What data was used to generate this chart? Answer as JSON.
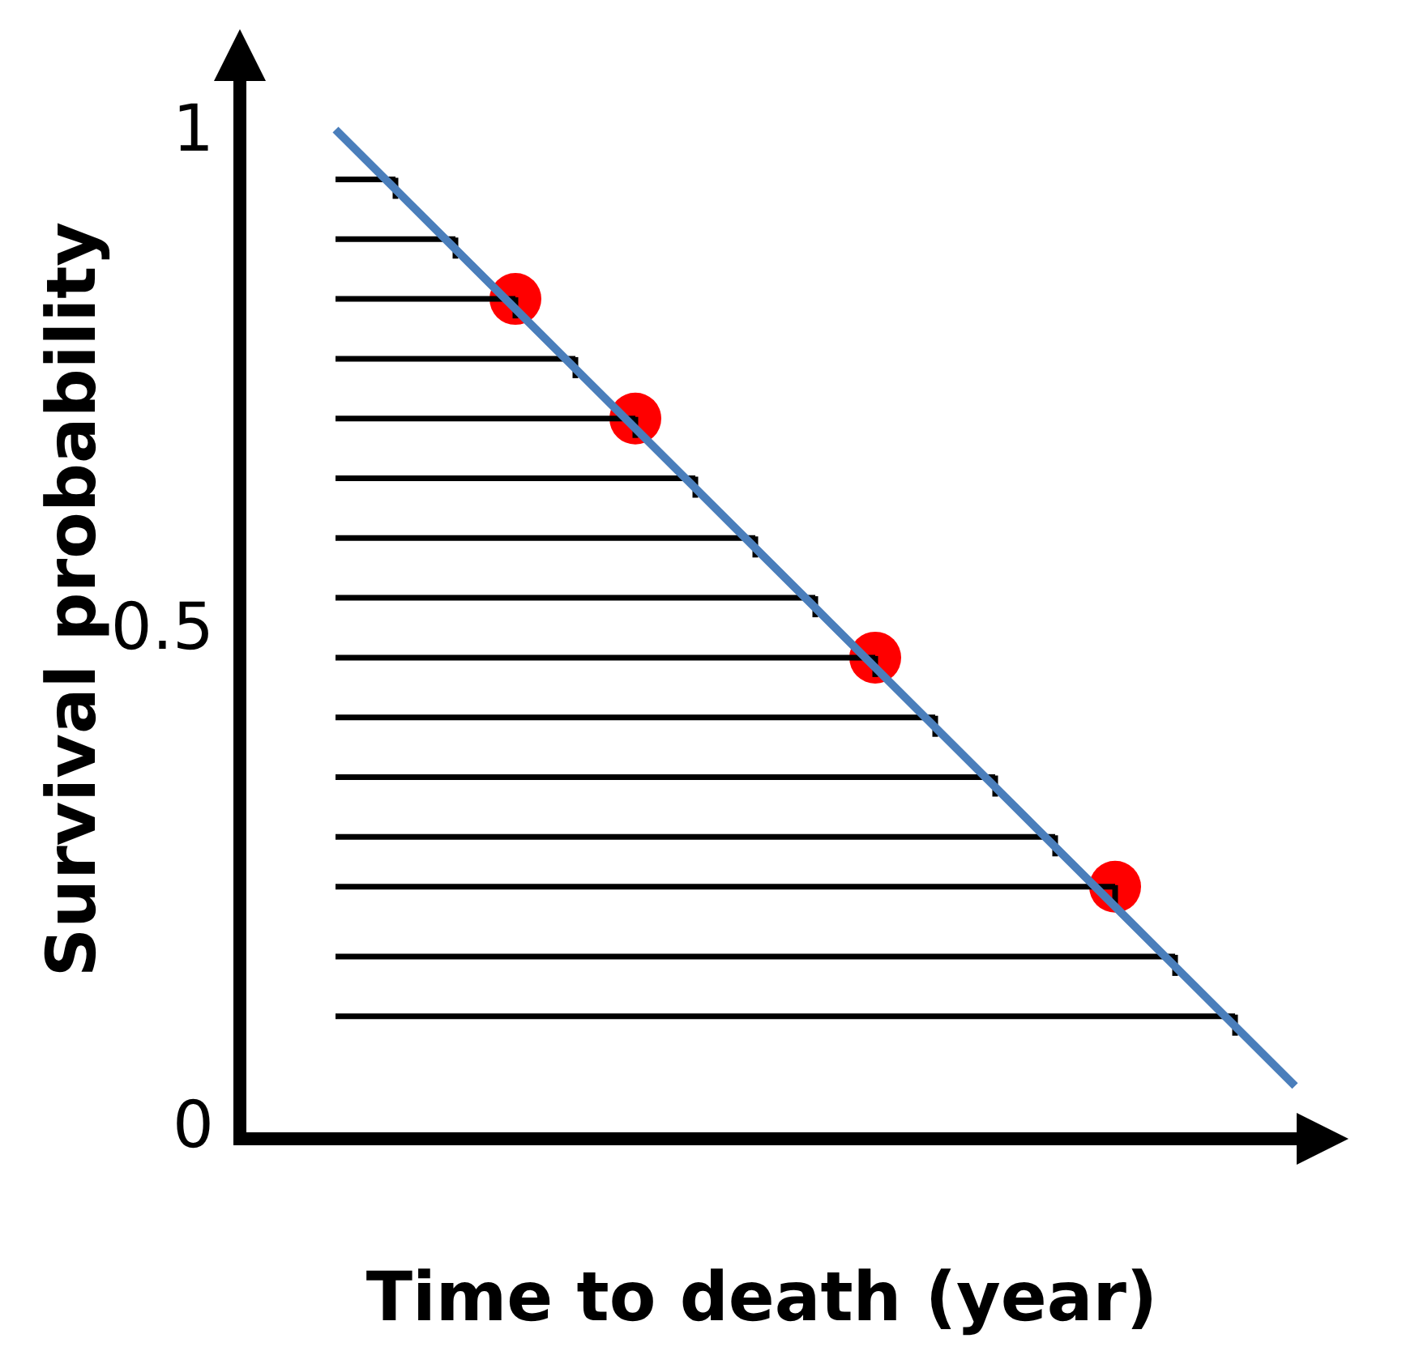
{
  "chart_data": {
    "type": "line",
    "xlabel": "Time to death (year)",
    "ylabel": "Survival probability",
    "categories": [
      null,
      null,
      null,
      null,
      null,
      null,
      null,
      null,
      null,
      null,
      null,
      null,
      null,
      null,
      null,
      null,
      null
    ],
    "ylim": [
      0,
      1
    ],
    "yticks": [
      0,
      0.5,
      1
    ],
    "tick_labels": "y",
    "series": [
      {
        "values": [
          0.95,
          0.95,
          null,
          null,
          null,
          null,
          null,
          null,
          null,
          null,
          null,
          null,
          null,
          null,
          null,
          null,
          null
        ],
        "color": "#000000"
      },
      {
        "values": [
          0.89,
          0.89,
          0.89,
          null,
          null,
          null,
          null,
          null,
          null,
          null,
          null,
          null,
          null,
          null,
          null,
          null,
          null
        ],
        "color": "#000000"
      },
      {
        "values": [
          0.83,
          0.83,
          0.83,
          0.83,
          null,
          null,
          null,
          null,
          null,
          null,
          null,
          null,
          null,
          null,
          null,
          null,
          null
        ],
        "color": "#000000"
      },
      {
        "values": [
          0.77,
          0.77,
          0.77,
          0.77,
          0.77,
          null,
          null,
          null,
          null,
          null,
          null,
          null,
          null,
          null,
          null,
          null,
          null
        ],
        "color": "#000000"
      },
      {
        "values": [
          0.71,
          0.71,
          0.71,
          0.71,
          0.71,
          0.71,
          null,
          null,
          null,
          null,
          null,
          null,
          null,
          null,
          null,
          null,
          null
        ],
        "color": "#000000"
      },
      {
        "values": [
          0.65,
          0.65,
          0.65,
          0.65,
          0.65,
          0.65,
          0.65,
          null,
          null,
          null,
          null,
          null,
          null,
          null,
          null,
          null,
          null
        ],
        "color": "#000000"
      },
      {
        "values": [
          0.59,
          0.59,
          0.59,
          0.59,
          0.59,
          0.59,
          0.59,
          0.59,
          null,
          null,
          null,
          null,
          null,
          null,
          null,
          null,
          null
        ],
        "color": "#000000"
      },
      {
        "values": [
          0.53,
          0.53,
          0.53,
          0.53,
          0.53,
          0.53,
          0.53,
          0.53,
          0.53,
          null,
          null,
          null,
          null,
          null,
          null,
          null,
          null
        ],
        "color": "#000000"
      },
      {
        "values": [
          0.47,
          0.47,
          0.47,
          0.47,
          0.47,
          0.47,
          0.47,
          0.47,
          0.47,
          0.47,
          null,
          null,
          null,
          null,
          null,
          null,
          null
        ],
        "color": "#000000"
      },
      {
        "values": [
          0.41,
          0.41,
          0.41,
          0.41,
          0.41,
          0.41,
          0.41,
          0.41,
          0.41,
          0.41,
          0.41,
          null,
          null,
          null,
          null,
          null,
          null
        ],
        "color": "#000000"
      },
      {
        "values": [
          0.35,
          0.35,
          0.35,
          0.35,
          0.35,
          0.35,
          0.35,
          0.35,
          0.35,
          0.35,
          0.35,
          0.35,
          null,
          null,
          null,
          null,
          null
        ],
        "color": "#000000"
      },
      {
        "values": [
          0.29,
          0.29,
          0.29,
          0.29,
          0.29,
          0.29,
          0.29,
          0.29,
          0.29,
          0.29,
          0.29,
          0.29,
          0.29,
          null,
          null,
          null,
          null
        ],
        "color": "#000000"
      },
      {
        "values": [
          0.24,
          0.24,
          0.24,
          0.24,
          0.24,
          0.24,
          0.24,
          0.24,
          0.24,
          0.24,
          0.24,
          0.24,
          0.24,
          0.24,
          null,
          null,
          null
        ],
        "color": "#000000"
      },
      {
        "values": [
          0.17,
          0.17,
          0.17,
          0.17,
          0.17,
          0.17,
          0.17,
          0.17,
          0.17,
          0.17,
          0.17,
          0.17,
          0.17,
          0.17,
          0.17,
          null,
          null
        ],
        "color": "#000000"
      },
      {
        "values": [
          0.11,
          0.11,
          0.11,
          0.11,
          0.11,
          0.11,
          0.11,
          0.11,
          0.11,
          0.11,
          0.11,
          0.11,
          0.11,
          0.11,
          0.11,
          0.11,
          null
        ],
        "color": "#000000"
      },
      {
        "values": [
          1,
          0.94,
          0.88,
          0.82,
          0.76,
          0.7,
          0.64,
          0.58,
          0.52,
          0.46,
          0.4,
          0.34,
          0.28,
          0.22,
          0.16,
          0.1,
          0.04
        ],
        "color": "#4a7ebb",
        "marker": "none"
      },
      {
        "type": "scatter",
        "values": [
          null,
          null,
          null,
          0.83,
          null,
          0.71,
          null,
          null,
          null,
          0.47,
          null,
          null,
          null,
          0.24,
          null,
          null,
          null
        ],
        "color": "#ff0000",
        "marker": "circle"
      }
    ]
  }
}
